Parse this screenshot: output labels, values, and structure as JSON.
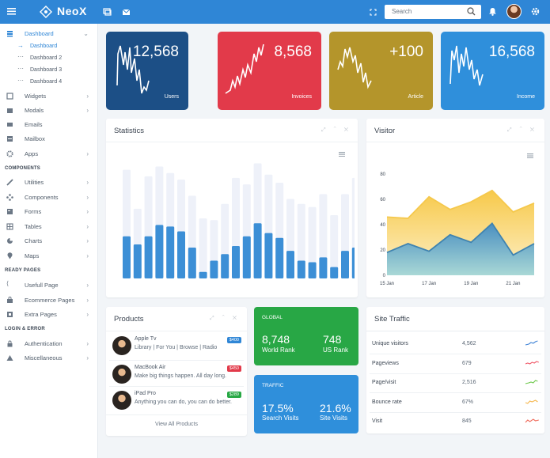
{
  "brand": {
    "name": "NeoX"
  },
  "topbar": {
    "search_placeholder": "Search",
    "icons": [
      "hamburger-icon",
      "logo-icon",
      "chat-icon",
      "mail-icon",
      "fullscreen-icon",
      "search-icon",
      "bell-icon",
      "settings-icon"
    ]
  },
  "sidebar": {
    "dashboard": {
      "label": "Dashboard",
      "icon": "dashboard-icon"
    },
    "dashboard_sub": [
      "Dashboard",
      "Dashboard 2",
      "Dashboard 3",
      "Dashboard 4"
    ],
    "main_items": [
      {
        "label": "Widgets",
        "icon": "widgets-icon"
      },
      {
        "label": "Modals",
        "icon": "modals-icon"
      },
      {
        "label": "Emails",
        "icon": "mail-icon"
      },
      {
        "label": "Mailbox",
        "icon": "inbox-icon"
      },
      {
        "label": "Apps",
        "icon": "apps-icon"
      }
    ],
    "components_header": "COMPONENTS",
    "components": [
      {
        "label": "Utilities",
        "icon": "pencil-icon"
      },
      {
        "label": "Components",
        "icon": "components-icon"
      },
      {
        "label": "Forms",
        "icon": "forms-icon"
      },
      {
        "label": "Tables",
        "icon": "table-icon"
      },
      {
        "label": "Charts",
        "icon": "chart-icon"
      },
      {
        "label": "Maps",
        "icon": "map-pin-icon"
      }
    ],
    "ready_header": "READY PAGES",
    "ready": [
      {
        "label": "Usefull Page",
        "icon": "page-icon"
      },
      {
        "label": "Ecommerce Pages",
        "icon": "cart-icon"
      },
      {
        "label": "Extra Pages",
        "icon": "extra-icon"
      }
    ],
    "login_header": "LOGIN & ERROR",
    "login": [
      {
        "label": "Authentication",
        "icon": "lock-icon"
      },
      {
        "label": "Miscellaneous",
        "icon": "warning-icon"
      }
    ]
  },
  "stats": [
    {
      "value": "12,568",
      "label": "Users",
      "color": "#1c4f86"
    },
    {
      "value": "8,568",
      "label": "Invoices",
      "color": "#e23a4a"
    },
    {
      "value": "+100",
      "label": "Article",
      "color": "#b4952b"
    },
    {
      "value": "16,568",
      "label": "Income",
      "color": "#2f8fdb"
    }
  ],
  "statistics": {
    "title": "Statistics",
    "chart_data": {
      "type": "bar",
      "grid": false,
      "series": [
        {
          "values": [
            6.7,
            4.3,
            6.3,
            6.9,
            6.5,
            6.1,
            5.1,
            3.7,
            3.6,
            4.6,
            6.2,
            5.8,
            7.1,
            6.4,
            5.9,
            4.9,
            4.6,
            4.4,
            5.2,
            3.9,
            5.2,
            6.2
          ]
        },
        {
          "values": [
            2.6,
            2.1,
            2.6,
            3.3,
            3.2,
            2.9,
            1.9,
            0.4,
            1.1,
            1.5,
            2.0,
            2.6,
            3.4,
            2.8,
            2.5,
            1.7,
            1.1,
            1.0,
            1.3,
            0.7,
            1.7,
            1.9
          ]
        }
      ],
      "colors": [
        "#eef1f9",
        "#3c8fd6"
      ]
    }
  },
  "visitor": {
    "title": "Visitor",
    "chart_data": {
      "type": "area",
      "x": [
        "15 Jan",
        "",
        "17 Jan",
        "",
        "19 Jan",
        "",
        "21 Jan",
        ""
      ],
      "yticks": [
        "0",
        "20",
        "40",
        "60",
        "80"
      ],
      "ylim": [
        0,
        80
      ],
      "series": [
        {
          "color": "#f5c84c",
          "values": [
            46,
            45,
            62,
            52,
            58,
            67,
            50,
            57
          ]
        },
        {
          "color": "#3f83b0",
          "values": [
            18,
            25,
            19,
            32,
            26,
            41,
            16,
            25
          ]
        }
      ]
    }
  },
  "products": {
    "title": "Products",
    "items": [
      {
        "name": "Apple Tv",
        "desc": "Library | For You | Browse | Radio",
        "price": "$400",
        "color": "#2f86d6"
      },
      {
        "name": "MacBook Air",
        "desc": "Make big things happen. All day long.",
        "price": "$450",
        "color": "#e23a4a"
      },
      {
        "name": "iPad Pro",
        "desc": "Anything you can do, you can do better.",
        "price": "$289",
        "color": "#27a844"
      }
    ],
    "view_all": "View All Products"
  },
  "global": {
    "title": "GLOBAL",
    "v1": "8,748",
    "l1": "World Rank",
    "v2": "748",
    "l2": "US Rank"
  },
  "traffic": {
    "title": "TRAFFIC",
    "v1": "17.5%",
    "l1": "Search Visits",
    "v2": "21.6%",
    "l2": "Site Visits"
  },
  "site_traffic": {
    "title": "Site Traffic",
    "rows": [
      {
        "label": "Unique visitors",
        "value": "4,562",
        "color": "#3f83d6"
      },
      {
        "label": "Pageviews",
        "value": "679",
        "color": "#f05a6a"
      },
      {
        "label": "Page/visit",
        "value": "2,516",
        "color": "#6cc84a"
      },
      {
        "label": "Bounce rate",
        "value": "67%",
        "color": "#f5b64c"
      },
      {
        "label": "Visit",
        "value": "845",
        "color": "#f06a5a"
      }
    ]
  }
}
